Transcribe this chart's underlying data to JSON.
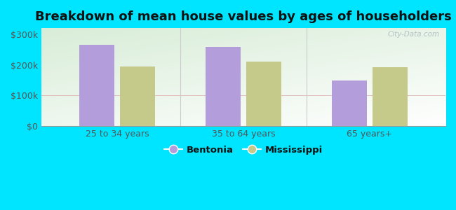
{
  "title": "Breakdown of mean house values by ages of householders",
  "categories": [
    "25 to 34 years",
    "35 to 64 years",
    "65 years+"
  ],
  "bentonia_values": [
    265000,
    258000,
    148000
  ],
  "mississippi_values": [
    195000,
    210000,
    192000
  ],
  "bentonia_color": "#b39ddb",
  "mississippi_color": "#c5c98a",
  "ylim": [
    0,
    320000
  ],
  "yticks": [
    0,
    100000,
    200000,
    300000
  ],
  "ytick_labels": [
    "$0",
    "$100k",
    "$200k",
    "$300k"
  ],
  "bar_width": 0.28,
  "background_color": "#00e5ff",
  "plot_bg_top_left": "#d4edda",
  "plot_bg_bottom_right": "#ffffff",
  "title_fontsize": 13,
  "legend_labels": [
    "Bentonia",
    "Mississippi"
  ],
  "watermark": "City-Data.com",
  "tick_label_color": "#555555",
  "separator_color": "#cccccc",
  "grid_color": "#e0c8d0",
  "grid_alpha": 0.8
}
